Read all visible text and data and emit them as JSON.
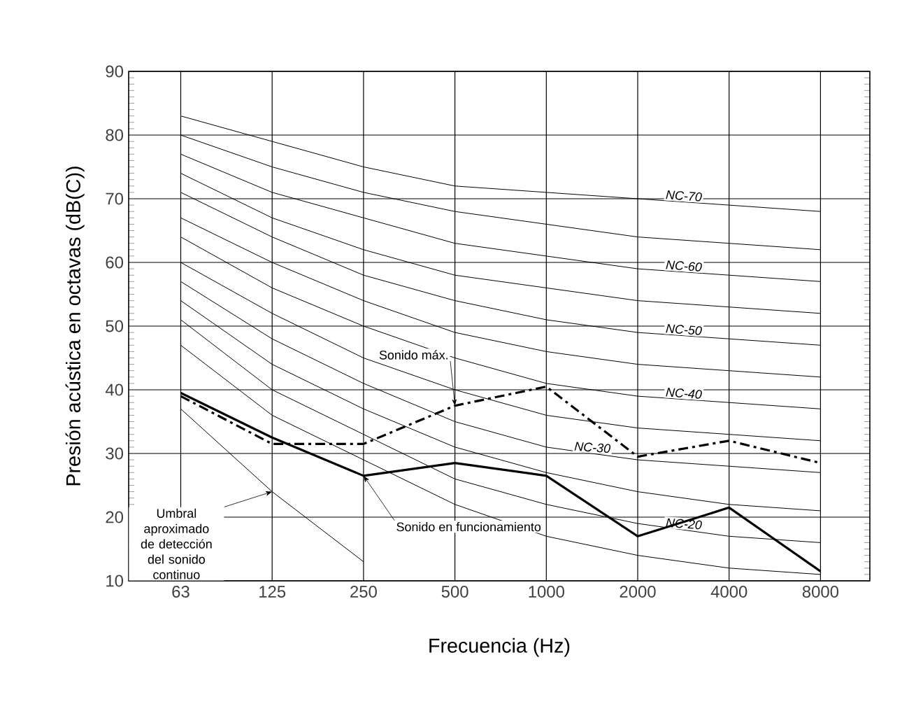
{
  "chart_data": {
    "type": "line",
    "xlabel": "Frecuencia (Hz)",
    "ylabel": "Presión acústica en octavas (dB(C))",
    "categories": [
      "63",
      "125",
      "250",
      "500",
      "1000",
      "2000",
      "4000",
      "8000"
    ],
    "ylim": [
      10,
      90
    ],
    "yticks": [
      10,
      20,
      30,
      40,
      50,
      60,
      70,
      80,
      90
    ],
    "grid": true,
    "series": [
      {
        "color": "#000000",
        "values": [
          47,
          36,
          29,
          22,
          17,
          14,
          12,
          11
        ]
      },
      {
        "name": "NC-20",
        "color": "#000000",
        "values": [
          51,
          40,
          33,
          26,
          22,
          19,
          17,
          16
        ]
      },
      {
        "color": "#000000",
        "values": [
          54,
          44,
          37,
          31,
          27,
          24,
          22,
          21
        ]
      },
      {
        "name": "NC-30",
        "color": "#000000",
        "values": [
          57,
          48,
          41,
          35,
          31,
          29,
          28,
          27
        ]
      },
      {
        "color": "#000000",
        "values": [
          60,
          52,
          45,
          40,
          36,
          34,
          33,
          32
        ]
      },
      {
        "name": "NC-40",
        "color": "#000000",
        "values": [
          64,
          56,
          50,
          45,
          41,
          39,
          38,
          37
        ]
      },
      {
        "color": "#000000",
        "values": [
          67,
          60,
          54,
          49,
          46,
          44,
          43,
          42
        ]
      },
      {
        "name": "NC-50",
        "color": "#000000",
        "values": [
          71,
          64,
          58,
          54,
          51,
          49,
          48,
          47
        ]
      },
      {
        "color": "#000000",
        "values": [
          74,
          67,
          62,
          58,
          56,
          54,
          53,
          52
        ]
      },
      {
        "name": "NC-60",
        "color": "#000000",
        "values": [
          77,
          71,
          67,
          63,
          61,
          59,
          58,
          57
        ]
      },
      {
        "color": "#000000",
        "values": [
          80,
          75,
          71,
          68,
          66,
          64,
          63,
          62
        ]
      },
      {
        "name": "NC-70",
        "color": "#000000",
        "values": [
          83,
          79,
          75,
          72,
          71,
          70,
          69,
          68
        ]
      },
      {
        "color": "#000000",
        "values": [
          37,
          24,
          13,
          null,
          null,
          null,
          null,
          null
        ]
      },
      {
        "color": "#000000",
        "line_style": "solid",
        "values": [
          39.5,
          32.5,
          26.5,
          28.5,
          26.5,
          17,
          21.5,
          11.5
        ]
      },
      {
        "color": "#000000",
        "line_style": "dashed",
        "values": [
          39,
          31.5,
          31.5,
          37.5,
          40.5,
          29.5,
          32,
          28.5
        ]
      }
    ],
    "annotations": [
      {
        "text": "Sonido máx.",
        "x": "500",
        "y": 37.5
      },
      {
        "text": "Sonido en funcionamiento",
        "x": "250",
        "y": 26.5
      },
      {
        "text": "Umbral aproximado de detección del sonido continuo",
        "x": "125",
        "y": 24
      }
    ]
  }
}
